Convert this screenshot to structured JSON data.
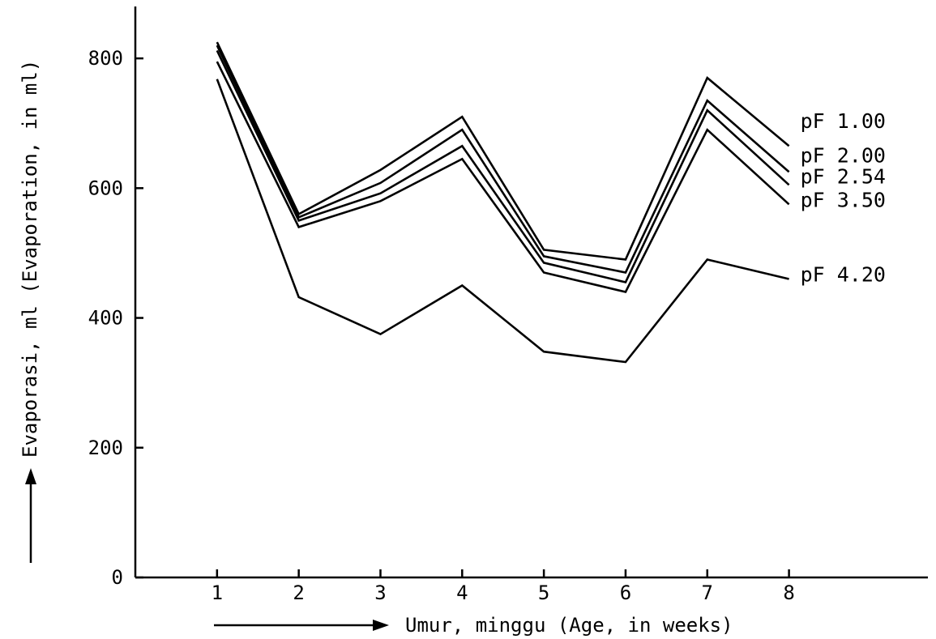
{
  "chart_data": {
    "type": "line",
    "xlabel": "Umur, minggu (Age, in weeks)",
    "ylabel": "Evaporasi, ml (Evaporation, in ml)",
    "x": [
      1,
      2,
      3,
      4,
      5,
      6,
      7,
      8
    ],
    "x_ticks": [
      "1",
      "2",
      "3",
      "4",
      "5",
      "6",
      "7",
      "8"
    ],
    "y_ticks": [
      "0",
      "200",
      "400",
      "600",
      "800"
    ],
    "xlim": [
      0,
      9.7
    ],
    "ylim": [
      0,
      880
    ],
    "grid": false,
    "legend": "labels at line ends (right)",
    "line_color": "#000000",
    "series": [
      {
        "name": "pF 1.00",
        "values": [
          825,
          560,
          628,
          710,
          505,
          490,
          770,
          665
        ]
      },
      {
        "name": "pF 2.00",
        "values": [
          820,
          555,
          608,
          690,
          495,
          470,
          735,
          625
        ]
      },
      {
        "name": "pF 2.54",
        "values": [
          812,
          550,
          592,
          665,
          485,
          455,
          720,
          605
        ]
      },
      {
        "name": "pF 3.50",
        "values": [
          795,
          540,
          580,
          645,
          470,
          440,
          690,
          575
        ]
      },
      {
        "name": "pF 4.20",
        "values": [
          768,
          432,
          375,
          450,
          348,
          332,
          490,
          460
        ]
      }
    ]
  }
}
